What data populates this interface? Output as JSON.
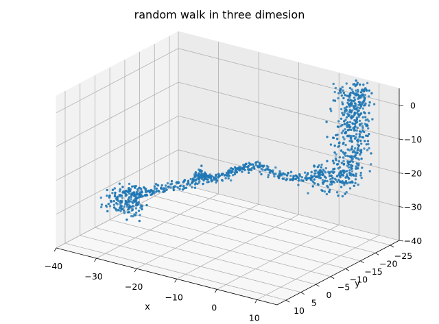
{
  "chart_data": {
    "type": "scatter",
    "projection": "3d",
    "title": "random walk in three dimesion",
    "xlabel": "x",
    "ylabel": "y",
    "zlabel": "",
    "xlim": [
      -40,
      15
    ],
    "ylim": [
      -28,
      13
    ],
    "zlim": [
      -40,
      5
    ],
    "x_ticks": [
      -40,
      -30,
      -20,
      -10,
      0,
      10
    ],
    "y_ticks": [
      -25,
      -20,
      -15,
      -10,
      -5,
      0,
      5,
      10
    ],
    "z_ticks": [
      -40,
      -30,
      -20,
      -10,
      0
    ],
    "grid": true,
    "legend": "none",
    "color": "#1f77b4",
    "series_path": [
      {
        "x": -32,
        "y": -2,
        "z": -33
      },
      {
        "x": -34,
        "y": 0,
        "z": -30
      },
      {
        "x": -30,
        "y": 1,
        "z": -27
      },
      {
        "x": -25,
        "y": 2,
        "z": -24
      },
      {
        "x": -20,
        "y": 1,
        "z": -21
      },
      {
        "x": -15,
        "y": 0,
        "z": -19
      },
      {
        "x": -13,
        "y": 1,
        "z": -15
      },
      {
        "x": -10,
        "y": 2,
        "z": -16
      },
      {
        "x": -6,
        "y": 1,
        "z": -13
      },
      {
        "x": -2,
        "y": 2,
        "z": -10
      },
      {
        "x": 1,
        "y": 0,
        "z": -9
      },
      {
        "x": 5,
        "y": -1,
        "z": -11
      },
      {
        "x": 9,
        "y": -3,
        "z": -12
      },
      {
        "x": 12,
        "y": -6,
        "z": -11
      },
      {
        "x": 14,
        "y": -9,
        "z": -14
      },
      {
        "x": 14,
        "y": -13,
        "z": -11
      },
      {
        "x": 12,
        "y": -17,
        "z": -5
      },
      {
        "x": 10,
        "y": -19,
        "z": -1
      },
      {
        "x": 8,
        "y": -23,
        "z": 2
      },
      {
        "x": 6,
        "y": -25,
        "z": 3
      }
    ]
  }
}
